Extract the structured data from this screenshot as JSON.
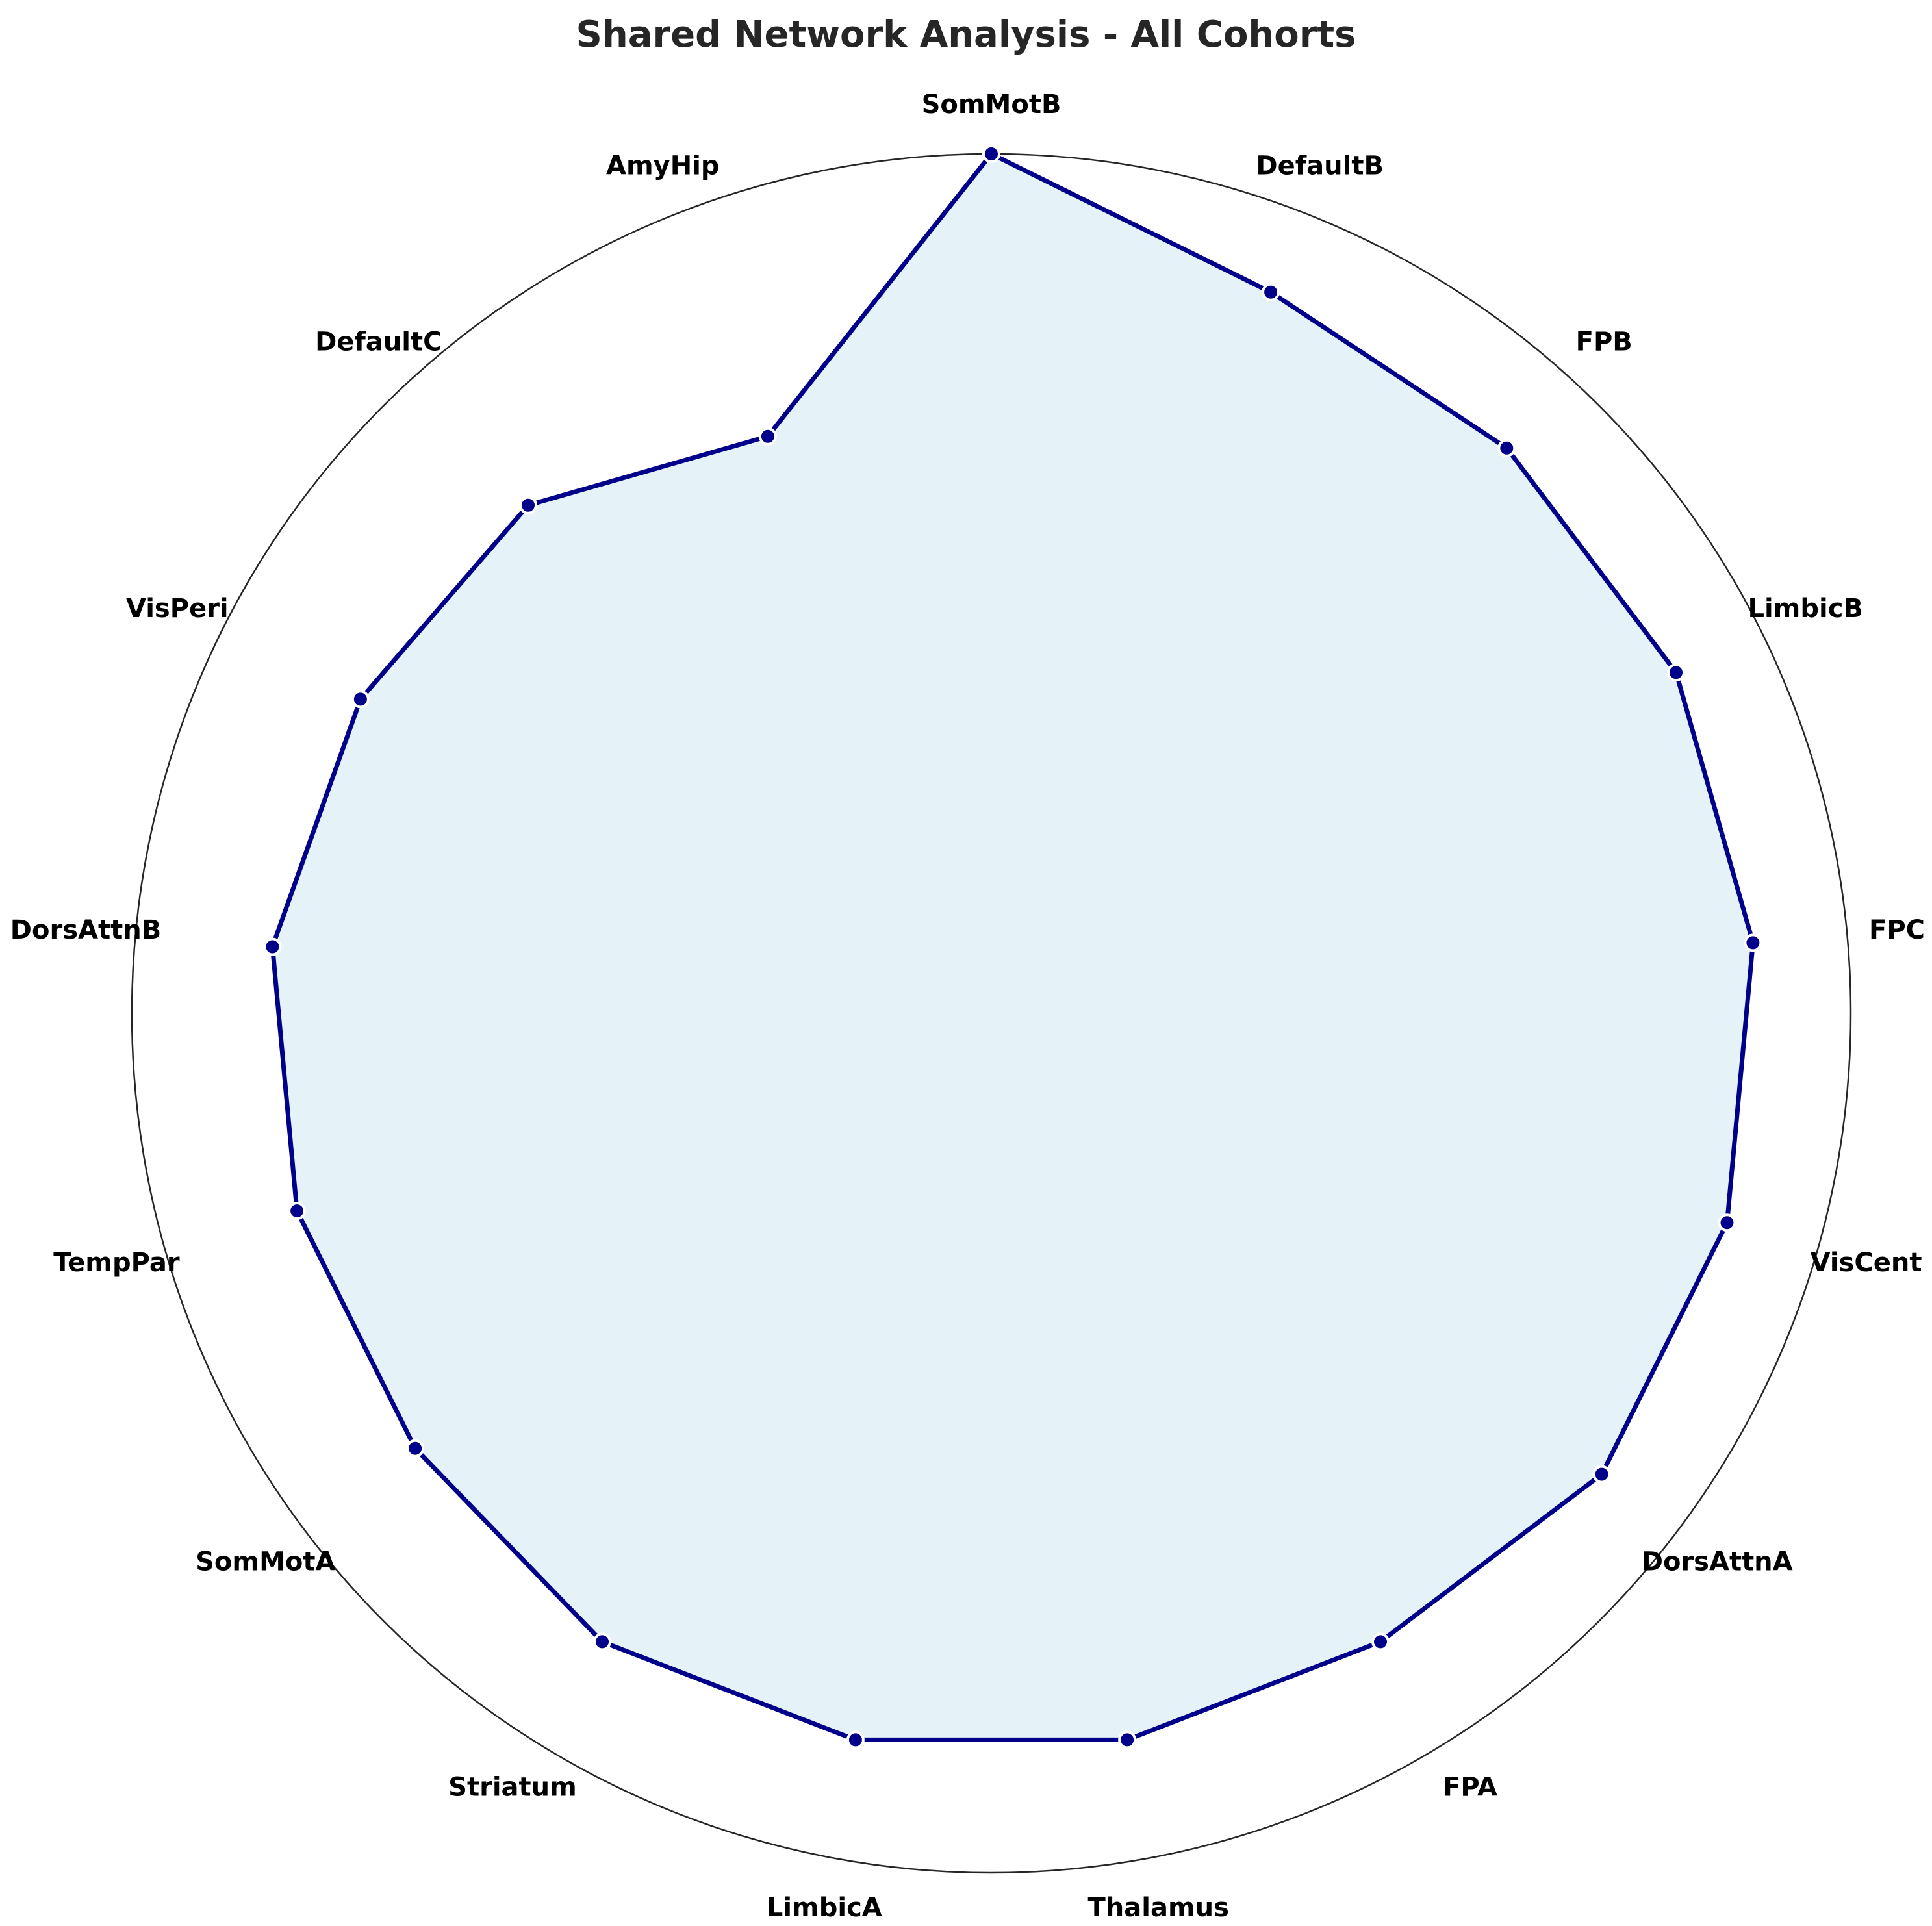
{
  "chart_data": {
    "type": "radar",
    "title": "Shared Network Analysis - All Cohorts",
    "categories": [
      "SomMotB",
      "DefaultB",
      "FPB",
      "LimbicB",
      "FPC",
      "VisCent",
      "DorsAttnA",
      "FPA",
      "Thalamus",
      "LimbicA",
      "Striatum",
      "SomMotA",
      "TempPar",
      "DorsAttnB",
      "VisPeri",
      "DefaultC",
      "AmyHip"
    ],
    "series": [
      {
        "values": [
          1.0,
          0.9,
          0.89,
          0.89,
          0.89,
          0.89,
          0.89,
          0.86,
          0.86,
          0.86,
          0.86,
          0.84,
          0.84,
          0.84,
          0.82,
          0.8,
          0.72
        ]
      }
    ],
    "rlim": [
      0,
      1.0
    ],
    "grid": false,
    "colors": {
      "line": "#00008B",
      "fill": "#ADD8E6",
      "marker_edge": "#ffffff",
      "circle": "#262626"
    }
  }
}
